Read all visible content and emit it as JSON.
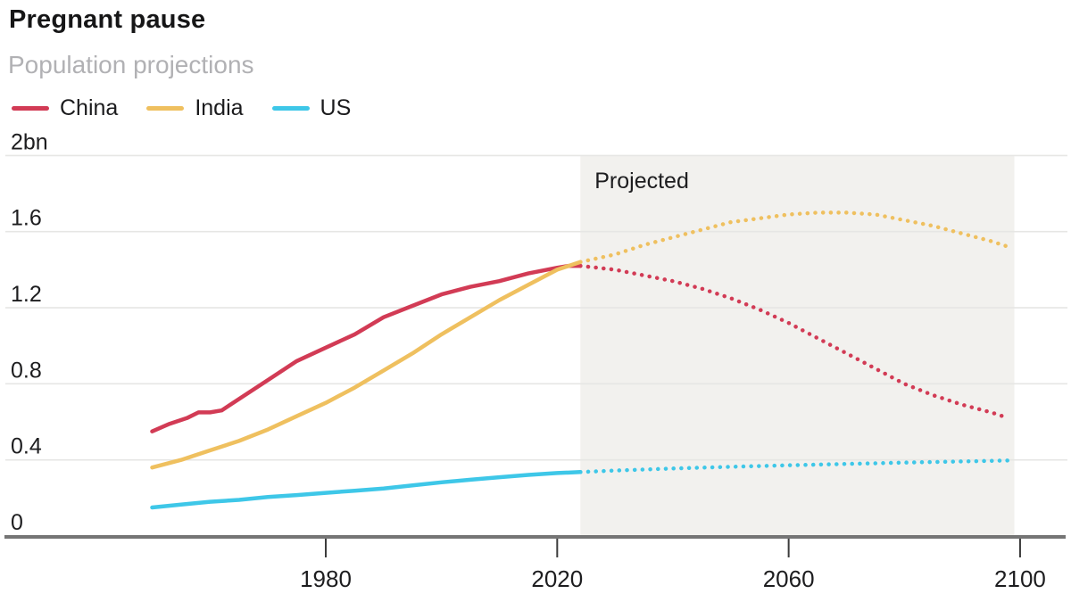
{
  "header": {
    "title": "Pregnant pause",
    "subtitle": "Population projections"
  },
  "chart_data": {
    "type": "line",
    "title": "Pregnant pause",
    "subtitle": "Population projections",
    "unit": "billions of people",
    "x_axis": {
      "range": [
        1950,
        2105
      ],
      "ticks": [
        1980,
        2020,
        2060,
        2100
      ],
      "tick_labels": [
        "1980",
        "2020",
        "2060",
        "2100"
      ]
    },
    "y_axis": {
      "range": [
        0,
        2.0
      ],
      "tick_values": [
        0,
        0.4,
        0.8,
        1.2,
        1.6,
        2.0
      ],
      "tick_labels": [
        "0",
        "0.4",
        "0.8",
        "1.2",
        "1.6",
        "2bn"
      ]
    },
    "grid": true,
    "legend_position": "top-left",
    "projection": {
      "label": "Projected",
      "start_year": 2024,
      "end_year": 2099,
      "band_color": "#f2f1ee"
    },
    "series": [
      {
        "name": "China",
        "color": "#d23b55",
        "solid": [
          [
            1950,
            0.55
          ],
          [
            1953,
            0.59
          ],
          [
            1956,
            0.62
          ],
          [
            1958,
            0.65
          ],
          [
            1960,
            0.65
          ],
          [
            1962,
            0.66
          ],
          [
            1965,
            0.72
          ],
          [
            1970,
            0.82
          ],
          [
            1975,
            0.92
          ],
          [
            1980,
            0.99
          ],
          [
            1985,
            1.06
          ],
          [
            1990,
            1.15
          ],
          [
            1995,
            1.21
          ],
          [
            2000,
            1.27
          ],
          [
            2005,
            1.31
          ],
          [
            2010,
            1.34
          ],
          [
            2015,
            1.38
          ],
          [
            2020,
            1.41
          ],
          [
            2022,
            1.42
          ],
          [
            2024,
            1.42
          ]
        ],
        "projected": [
          [
            2024,
            1.42
          ],
          [
            2030,
            1.4
          ],
          [
            2035,
            1.37
          ],
          [
            2040,
            1.34
          ],
          [
            2045,
            1.3
          ],
          [
            2050,
            1.25
          ],
          [
            2055,
            1.19
          ],
          [
            2060,
            1.12
          ],
          [
            2065,
            1.04
          ],
          [
            2070,
            0.96
          ],
          [
            2075,
            0.88
          ],
          [
            2080,
            0.8
          ],
          [
            2085,
            0.74
          ],
          [
            2090,
            0.69
          ],
          [
            2095,
            0.65
          ],
          [
            2098,
            0.62
          ]
        ]
      },
      {
        "name": "India",
        "color": "#efc05f",
        "solid": [
          [
            1950,
            0.36
          ],
          [
            1955,
            0.4
          ],
          [
            1960,
            0.45
          ],
          [
            1965,
            0.5
          ],
          [
            1970,
            0.56
          ],
          [
            1975,
            0.63
          ],
          [
            1980,
            0.7
          ],
          [
            1985,
            0.78
          ],
          [
            1990,
            0.87
          ],
          [
            1995,
            0.96
          ],
          [
            2000,
            1.06
          ],
          [
            2005,
            1.15
          ],
          [
            2010,
            1.24
          ],
          [
            2015,
            1.32
          ],
          [
            2020,
            1.4
          ],
          [
            2024,
            1.44
          ]
        ],
        "projected": [
          [
            2024,
            1.44
          ],
          [
            2030,
            1.48
          ],
          [
            2035,
            1.53
          ],
          [
            2040,
            1.57
          ],
          [
            2045,
            1.61
          ],
          [
            2050,
            1.65
          ],
          [
            2055,
            1.67
          ],
          [
            2060,
            1.69
          ],
          [
            2065,
            1.7
          ],
          [
            2070,
            1.7
          ],
          [
            2075,
            1.69
          ],
          [
            2080,
            1.66
          ],
          [
            2085,
            1.63
          ],
          [
            2090,
            1.59
          ],
          [
            2095,
            1.55
          ],
          [
            2098,
            1.52
          ]
        ]
      },
      {
        "name": "US",
        "color": "#3ec7e8",
        "solid": [
          [
            1950,
            0.15
          ],
          [
            1955,
            0.165
          ],
          [
            1960,
            0.18
          ],
          [
            1965,
            0.19
          ],
          [
            1970,
            0.205
          ],
          [
            1975,
            0.215
          ],
          [
            1980,
            0.227
          ],
          [
            1985,
            0.238
          ],
          [
            1990,
            0.25
          ],
          [
            1995,
            0.266
          ],
          [
            2000,
            0.282
          ],
          [
            2005,
            0.296
          ],
          [
            2010,
            0.309
          ],
          [
            2015,
            0.321
          ],
          [
            2020,
            0.331
          ],
          [
            2024,
            0.336
          ]
        ],
        "projected": [
          [
            2024,
            0.336
          ],
          [
            2030,
            0.344
          ],
          [
            2040,
            0.355
          ],
          [
            2050,
            0.364
          ],
          [
            2060,
            0.372
          ],
          [
            2070,
            0.379
          ],
          [
            2080,
            0.386
          ],
          [
            2090,
            0.392
          ],
          [
            2098,
            0.397
          ]
        ]
      }
    ]
  }
}
